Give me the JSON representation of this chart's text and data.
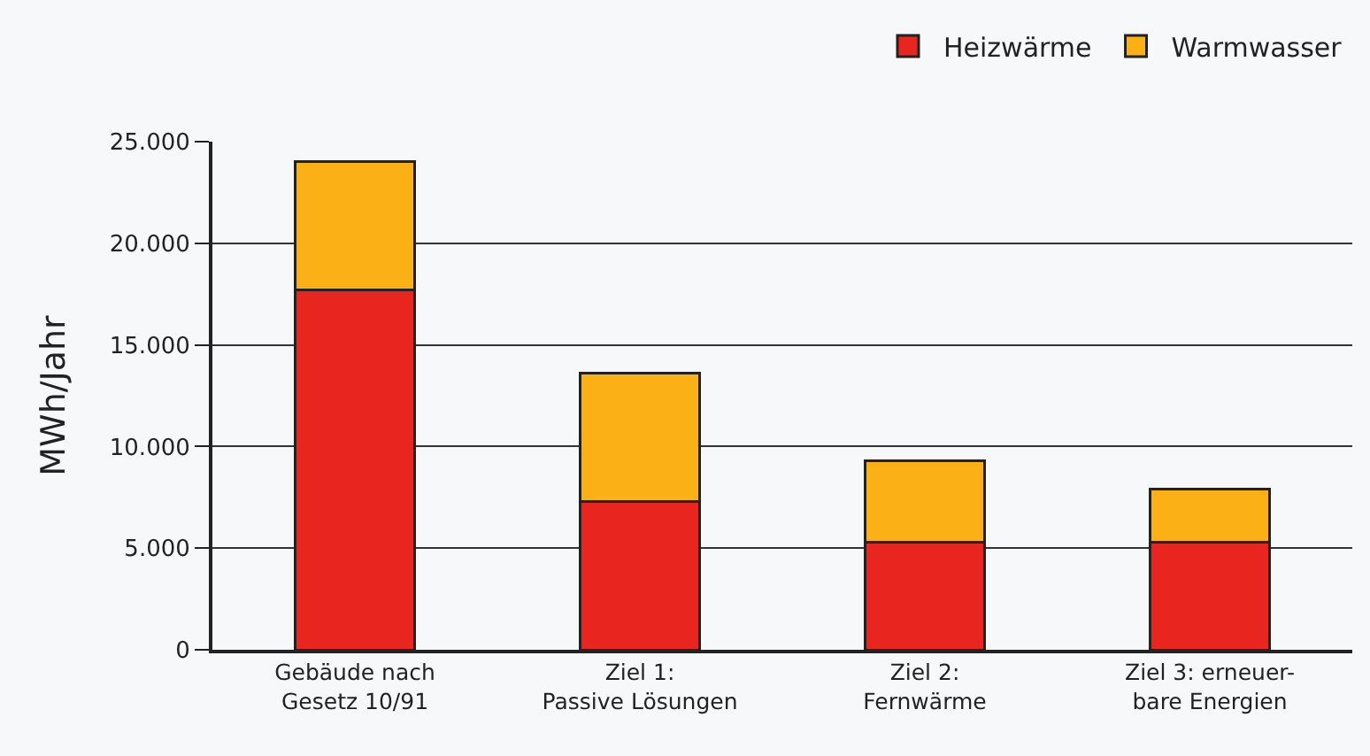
{
  "chart_data": {
    "type": "bar",
    "stacked": true,
    "ylabel": "MWh/Jahr",
    "categories": [
      "Gebäude nach\nGesetz 10/91",
      "Ziel 1:\nPassive Lösungen",
      "Ziel 2:\nFernwärme",
      "Ziel 3: erneuer-\nbare Energien"
    ],
    "series": [
      {
        "name": "Heizwärme",
        "color": "#e8251f",
        "values": [
          17700,
          7300,
          5300,
          5300
        ]
      },
      {
        "name": "Warmwasser",
        "color": "#fbb116",
        "values": [
          6300,
          6300,
          4000,
          2600
        ]
      }
    ],
    "ylim": [
      0,
      25000
    ],
    "yticks": [
      {
        "value": 0,
        "label": "0"
      },
      {
        "value": 5000,
        "label": "5.000"
      },
      {
        "value": 10000,
        "label": "10.000"
      },
      {
        "value": 15000,
        "label": "15.000"
      },
      {
        "value": 20000,
        "label": "20.000"
      },
      {
        "value": 25000,
        "label": "25.000"
      }
    ],
    "grid": "y",
    "legend": "top right"
  }
}
